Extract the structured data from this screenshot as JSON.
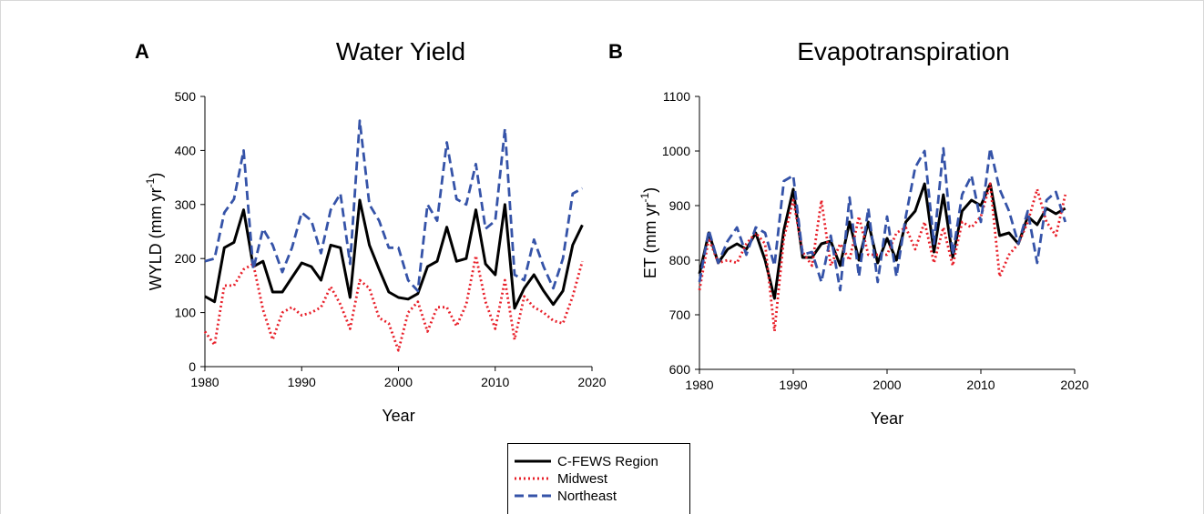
{
  "chart_data": [
    {
      "type": "line",
      "panel_label": "A",
      "title": "Water Yield",
      "xlabel": "Year",
      "ylabel": {
        "text": "WYLD (mm yr",
        "superscript": "-1",
        "suffix": ")"
      },
      "x": [
        1980,
        1981,
        1982,
        1983,
        1984,
        1985,
        1986,
        1987,
        1988,
        1989,
        1990,
        1991,
        1992,
        1993,
        1994,
        1995,
        1996,
        1997,
        1998,
        1999,
        2000,
        2001,
        2002,
        2003,
        2004,
        2005,
        2006,
        2007,
        2008,
        2009,
        2010,
        2011,
        2012,
        2013,
        2014,
        2015,
        2016,
        2017,
        2018,
        2019
      ],
      "xlim": [
        1980,
        2020
      ],
      "xticks": [
        1980,
        1990,
        2000,
        2010,
        2020
      ],
      "ylim": [
        0,
        500
      ],
      "yticks": [
        0,
        100,
        200,
        300,
        400,
        500
      ],
      "series": [
        {
          "name": "C-FEWS Region",
          "color": "#000000",
          "dash": "solid",
          "values": [
            130,
            120,
            220,
            230,
            290,
            185,
            195,
            138,
            138,
            165,
            192,
            185,
            160,
            225,
            220,
            128,
            308,
            225,
            180,
            138,
            128,
            125,
            135,
            185,
            195,
            258,
            195,
            200,
            290,
            190,
            170,
            300,
            108,
            145,
            170,
            140,
            115,
            140,
            225,
            262
          ]
        },
        {
          "name": "Midwest",
          "color": "#e8202a",
          "dash": "dotted",
          "values": [
            65,
            40,
            150,
            150,
            180,
            190,
            105,
            50,
            100,
            110,
            95,
            100,
            110,
            148,
            115,
            70,
            160,
            145,
            90,
            80,
            30,
            100,
            120,
            65,
            110,
            110,
            75,
            115,
            205,
            120,
            70,
            160,
            50,
            130,
            110,
            100,
            85,
            80,
            130,
            195
          ]
        },
        {
          "name": "Northeast",
          "color": "#3553a8",
          "dash": "dashed",
          "values": [
            195,
            200,
            285,
            310,
            400,
            180,
            255,
            225,
            175,
            220,
            285,
            270,
            210,
            290,
            320,
            190,
            455,
            300,
            270,
            220,
            220,
            160,
            140,
            300,
            270,
            415,
            310,
            300,
            375,
            255,
            270,
            440,
            170,
            160,
            235,
            185,
            145,
            200,
            320,
            330
          ]
        }
      ]
    },
    {
      "type": "line",
      "panel_label": "B",
      "title": "Evapotranspiration",
      "xlabel": "Year",
      "ylabel": {
        "text": "ET (mm yr",
        "superscript": "-1",
        "suffix": ")"
      },
      "x": [
        1980,
        1981,
        1982,
        1983,
        1984,
        1985,
        1986,
        1987,
        1988,
        1989,
        1990,
        1991,
        1992,
        1993,
        1994,
        1995,
        1996,
        1997,
        1998,
        1999,
        2000,
        2001,
        2002,
        2003,
        2004,
        2005,
        2006,
        2007,
        2008,
        2009,
        2010,
        2011,
        2012,
        2013,
        2014,
        2015,
        2016,
        2017,
        2018,
        2019
      ],
      "xlim": [
        1980,
        2020
      ],
      "xticks": [
        1980,
        1990,
        2000,
        2010,
        2020
      ],
      "ylim": [
        600,
        1100
      ],
      "yticks": [
        600,
        700,
        800,
        900,
        1000,
        1100
      ],
      "series": [
        {
          "color": "#000000",
          "dash": "solid",
          "values": [
            775,
            850,
            795,
            820,
            830,
            820,
            850,
            800,
            730,
            855,
            930,
            805,
            805,
            830,
            835,
            790,
            870,
            800,
            870,
            795,
            840,
            800,
            870,
            890,
            940,
            815,
            920,
            805,
            890,
            910,
            900,
            940,
            845,
            850,
            830,
            880,
            865,
            895,
            885,
            895
          ]
        },
        {
          "color": "#e8202a",
          "dash": "dotted",
          "values": [
            745,
            840,
            795,
            800,
            795,
            830,
            850,
            830,
            670,
            840,
            910,
            815,
            790,
            910,
            790,
            830,
            800,
            880,
            810,
            810,
            810,
            850,
            860,
            820,
            870,
            795,
            860,
            790,
            870,
            860,
            880,
            940,
            770,
            810,
            830,
            870,
            930,
            870,
            845,
            920
          ]
        },
        {
          "color": "#3553a8",
          "dash": "dashed",
          "values": [
            760,
            855,
            795,
            835,
            860,
            810,
            860,
            850,
            790,
            945,
            955,
            810,
            815,
            760,
            845,
            745,
            915,
            770,
            895,
            760,
            880,
            770,
            880,
            970,
            1000,
            830,
            1005,
            810,
            920,
            955,
            870,
            1005,
            930,
            890,
            830,
            890,
            795,
            910,
            925,
            870
          ]
        }
      ]
    }
  ]
}
